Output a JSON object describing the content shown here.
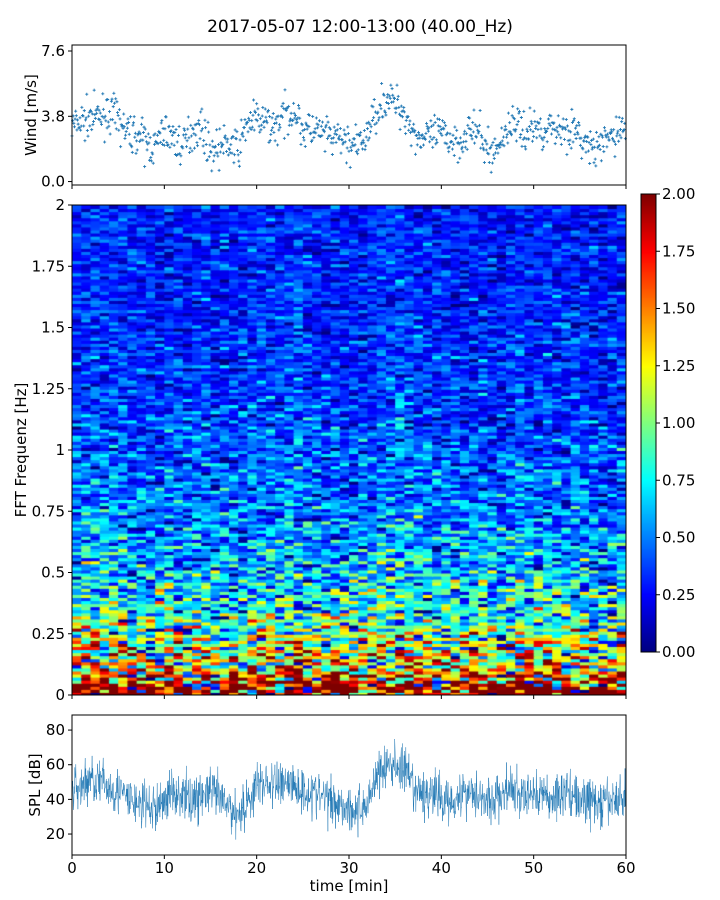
{
  "chart_data": [
    {
      "type": "scatter",
      "title": "2017-05-07 12:00-13:00 (40.00_Hz)",
      "ylabel": "Wind [m/s]",
      "xlim": [
        0,
        60
      ],
      "ylim": [
        -0.2,
        7.95
      ],
      "yticks": [
        "0.0",
        "3.8",
        "7.6"
      ],
      "ytick_values": [
        0.0,
        3.8,
        7.6
      ],
      "marker": "+",
      "color": "#1f77b4",
      "minute_means": [
        3.2,
        3.5,
        3.7,
        3.8,
        4.0,
        3.6,
        2.8,
        2.8,
        2.2,
        2.0,
        3.0,
        2.5,
        2.0,
        3.0,
        3.2,
        1.8,
        2.0,
        2.2,
        1.8,
        3.5,
        3.6,
        3.4,
        3.2,
        3.8,
        4.2,
        3.0,
        3.0,
        2.8,
        2.5,
        2.5,
        2.2,
        2.0,
        2.8,
        4.2,
        4.8,
        4.6,
        4.0,
        2.8,
        2.5,
        2.6,
        2.8,
        2.5,
        2.3,
        3.0,
        2.8,
        1.8,
        1.8,
        3.0,
        3.5,
        2.8,
        3.2,
        3.0,
        3.2,
        3.0,
        3.1,
        2.5,
        2.0,
        1.8,
        2.5,
        2.8,
        3.2
      ]
    },
    {
      "type": "heatmap",
      "ylabel": "FFT Frequenz [Hz]",
      "xlim": [
        0,
        60
      ],
      "ylim": [
        0,
        2
      ],
      "yticks": [
        "0",
        "0.25",
        "0.5",
        "0.75",
        "1",
        "1.25",
        "1.5",
        "1.75",
        "2"
      ],
      "ytick_values": [
        0,
        0.25,
        0.5,
        0.75,
        1,
        1.25,
        1.5,
        1.75,
        2
      ],
      "colormap": "jet",
      "clim": [
        0,
        2
      ],
      "colorbar_ticks": [
        "0.00",
        "0.25",
        "0.50",
        "0.75",
        "1.00",
        "1.25",
        "1.50",
        "1.75",
        "2.00"
      ],
      "colorbar_values": [
        0,
        0.25,
        0.5,
        0.75,
        1,
        1.25,
        1.5,
        1.75,
        2
      ],
      "frequency_profile": [
        [
          0.0,
          2.0
        ],
        [
          0.05,
          1.9
        ],
        [
          0.1,
          1.3
        ],
        [
          0.2,
          1.1
        ],
        [
          0.3,
          0.85
        ],
        [
          0.5,
          0.65
        ],
        [
          0.75,
          0.5
        ],
        [
          1.0,
          0.42
        ],
        [
          1.25,
          0.36
        ],
        [
          1.5,
          0.33
        ],
        [
          2.0,
          0.3
        ]
      ]
    },
    {
      "type": "line",
      "xlabel": "time [min]",
      "ylabel": "SPL [dB]",
      "xlim": [
        0,
        60
      ],
      "ylim": [
        7.9,
        88.7
      ],
      "xticks": [
        "0",
        "10",
        "20",
        "30",
        "40",
        "50",
        "60"
      ],
      "xtick_values": [
        0,
        10,
        20,
        30,
        40,
        50,
        60
      ],
      "yticks": [
        "20",
        "40",
        "60",
        "80"
      ],
      "ytick_values": [
        20,
        40,
        60,
        80
      ],
      "color": "#1f77b4",
      "minute_means": [
        45,
        48,
        52,
        50,
        47,
        45,
        40,
        38,
        36,
        34,
        40,
        45,
        42,
        40,
        42,
        45,
        40,
        35,
        32,
        38,
        48,
        50,
        47,
        52,
        48,
        45,
        44,
        42,
        40,
        38,
        35,
        33,
        38,
        55,
        58,
        60,
        57,
        45,
        42,
        44,
        40,
        40,
        42,
        45,
        44,
        38,
        40,
        45,
        44,
        40,
        45,
        42,
        40,
        44,
        45,
        38,
        40,
        36,
        38,
        40,
        42
      ]
    }
  ]
}
